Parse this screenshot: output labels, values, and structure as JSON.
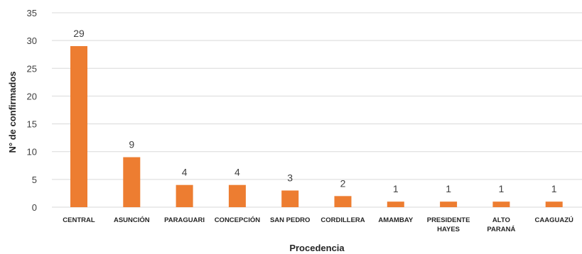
{
  "chart_data": {
    "type": "bar",
    "categories": [
      [
        "CENTRAL"
      ],
      [
        "ASUNCIÓN"
      ],
      [
        "PARAGUARI"
      ],
      [
        "CONCEPCIÓN"
      ],
      [
        "SAN PEDRO"
      ],
      [
        "CORDILLERA"
      ],
      [
        "AMAMBAY"
      ],
      [
        "PRESIDENTE",
        "HAYES"
      ],
      [
        "ALTO",
        "PARANÁ"
      ],
      [
        "CAAGUAZÚ"
      ]
    ],
    "values": [
      29,
      9,
      4,
      4,
      3,
      2,
      1,
      1,
      1,
      1
    ],
    "xlabel": "Procedencia",
    "ylabel": "N° de confirmados",
    "ylim": [
      0,
      35
    ],
    "yticks": [
      0,
      5,
      10,
      15,
      20,
      25,
      30,
      35
    ],
    "grid": true,
    "bar_color": "#ED7D31",
    "grid_color": "#D9D9D9",
    "data_labels": true
  }
}
